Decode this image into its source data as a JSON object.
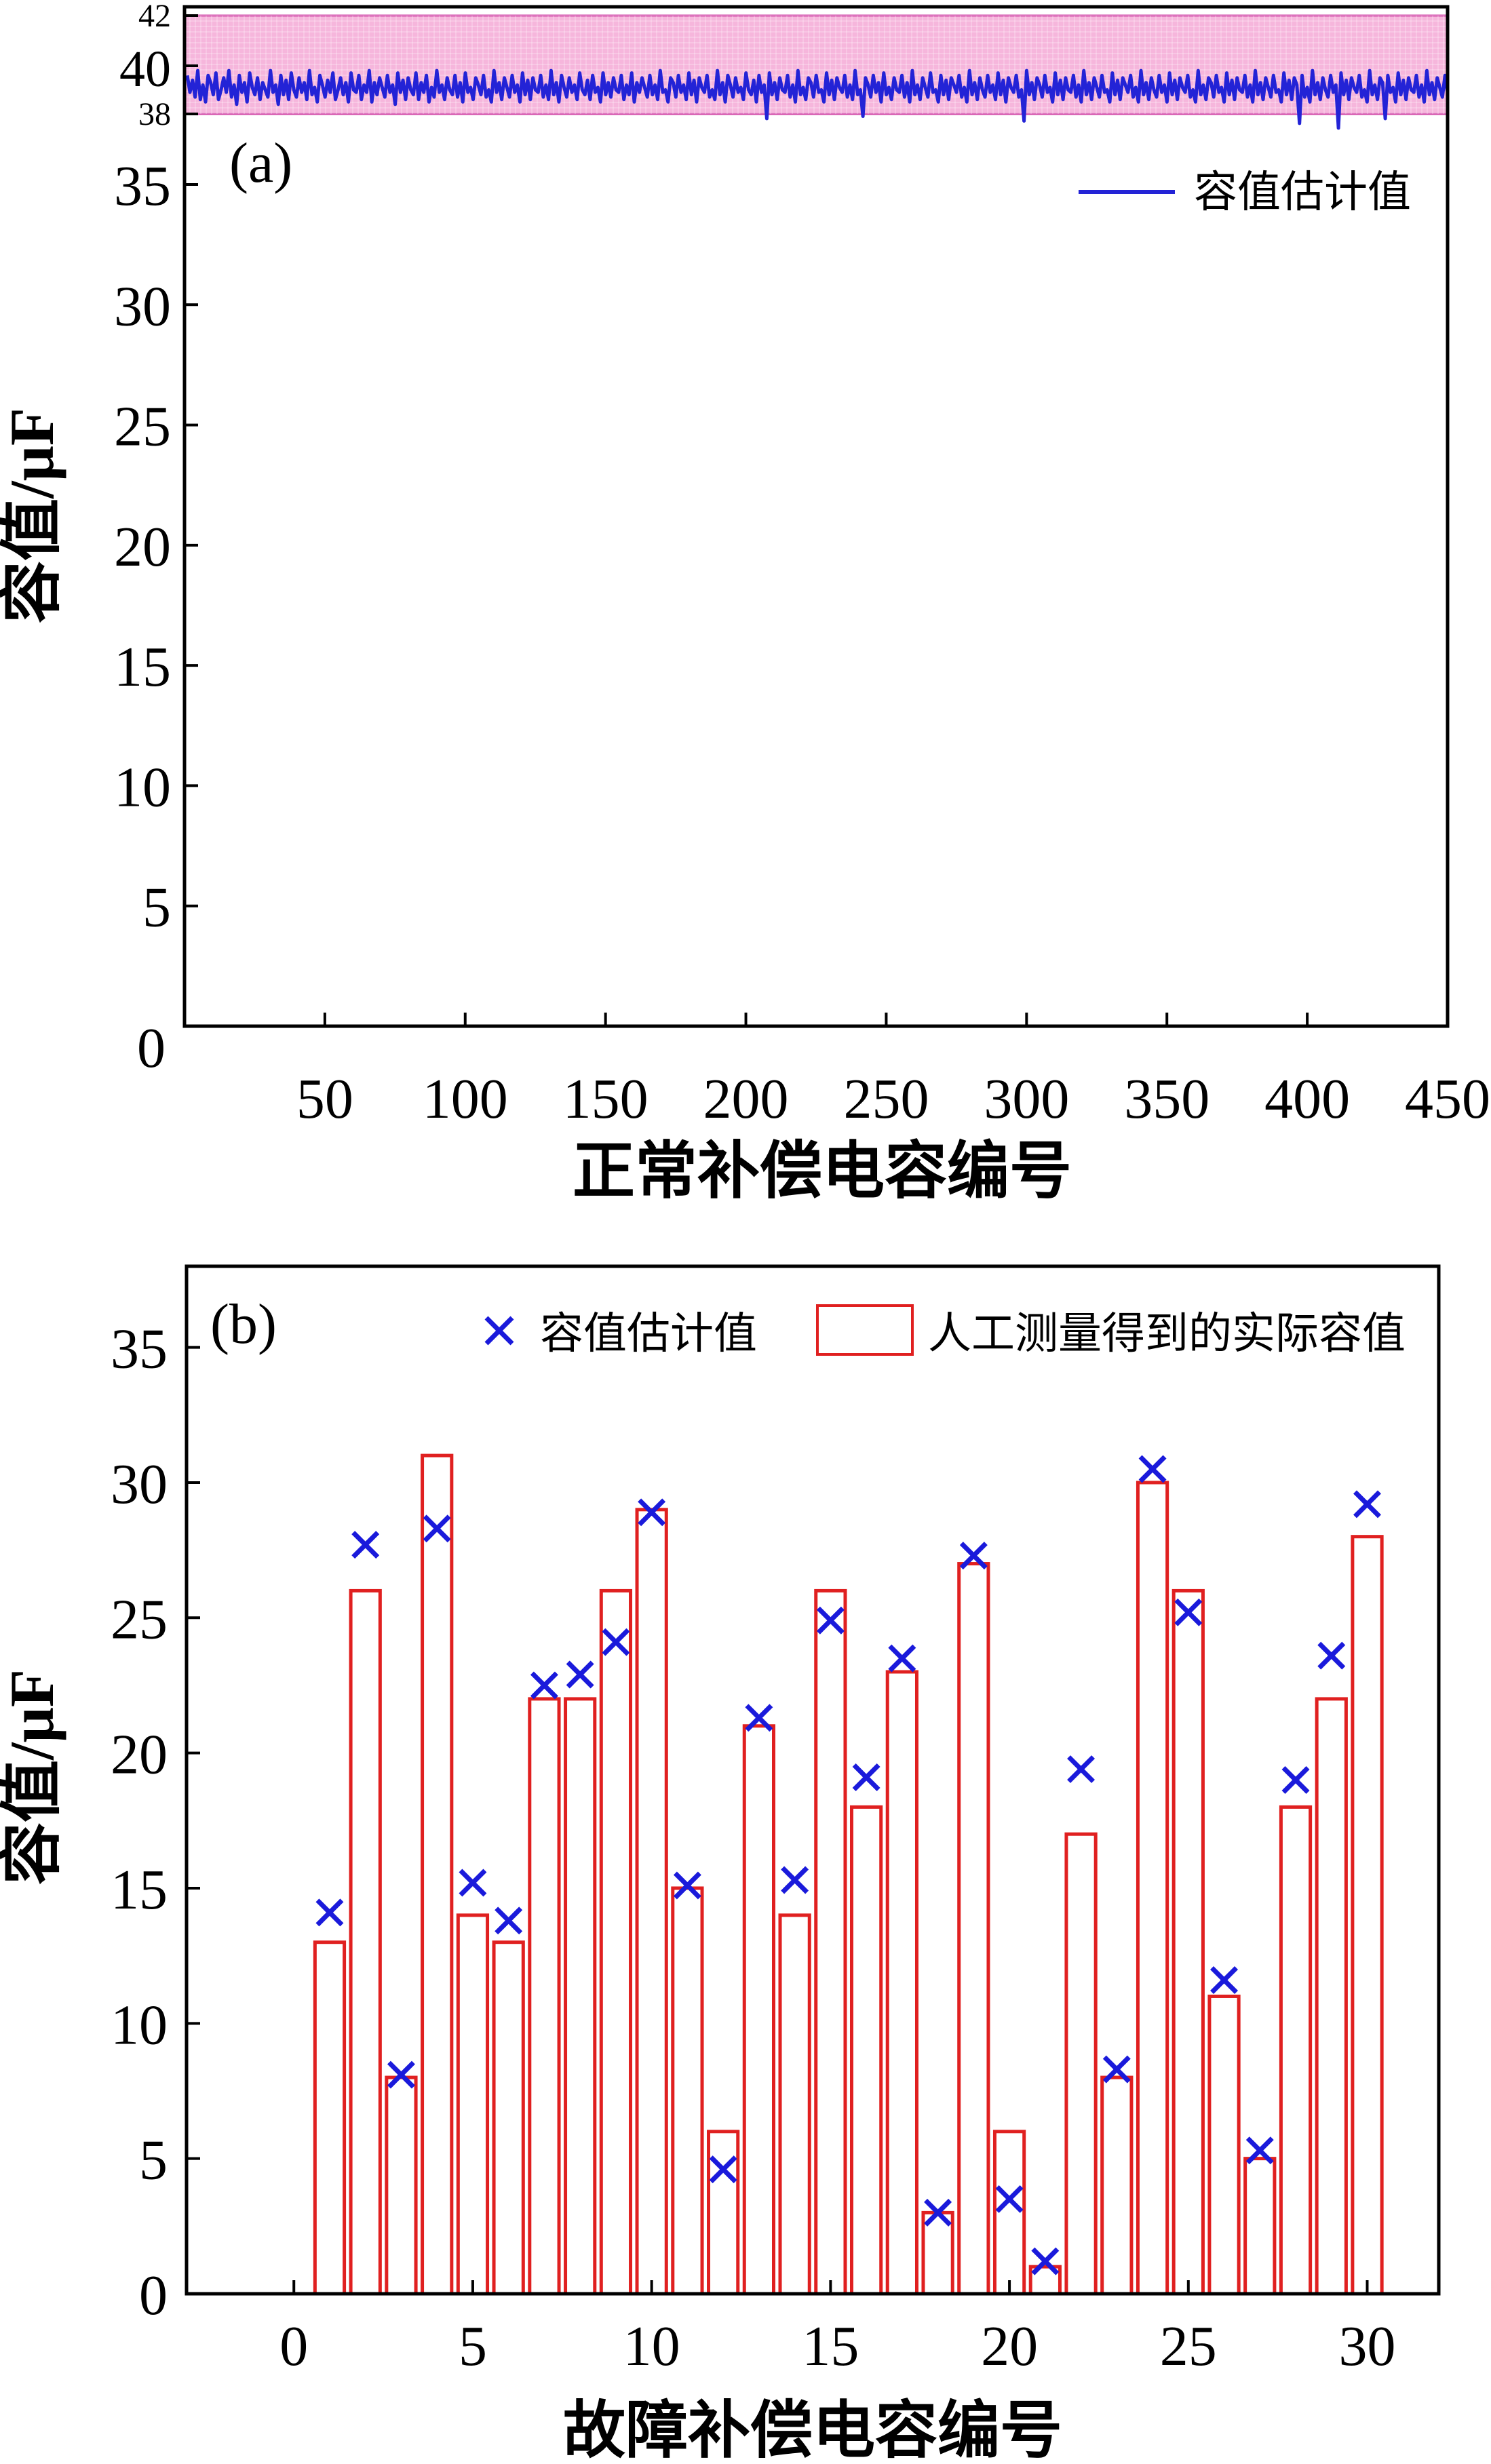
{
  "chart_data": [
    {
      "panel_label": "(a)",
      "type": "line",
      "xlabel": "正常补偿电容编号",
      "ylabel": "容值/μF",
      "xlim": [
        0,
        450
      ],
      "ylim": [
        0,
        42
      ],
      "xticks": [
        "50",
        "100",
        "150",
        "200",
        "250",
        "300",
        "350",
        "400",
        "450"
      ],
      "yticks": [
        "0",
        "5",
        "10",
        "15",
        "20",
        "25",
        "30",
        "35",
        "38",
        "40",
        "42"
      ],
      "band": {
        "range": [
          38,
          42
        ],
        "color": "#f6b6dc"
      },
      "legend_position": "top-right",
      "series": [
        {
          "name": "容值估计值",
          "color": "#2323d6",
          "values": [
            39.6,
            38.9,
            39.4,
            38.7,
            39.8,
            38.6,
            39.2,
            38.5,
            39.6,
            39.3,
            38.8,
            39.7,
            38.6,
            39.0,
            39.5,
            38.9,
            39.8,
            38.7,
            39.2,
            38.4,
            39.6,
            38.9,
            39.3,
            38.5,
            39.7,
            39.1,
            38.8,
            39.5,
            38.6,
            39.3,
            39.0,
            38.7,
            39.8,
            38.9,
            39.2,
            38.4,
            39.6,
            38.8,
            39.4,
            38.6,
            39.7,
            39.0,
            38.7,
            39.5,
            38.9,
            39.3,
            38.6,
            39.8,
            38.8,
            39.1,
            38.5,
            39.6,
            39.2,
            38.7,
            39.4,
            38.9,
            39.7,
            38.6,
            39.0,
            39.5,
            38.8,
            39.3,
            38.5,
            39.7,
            39.0,
            38.9,
            39.6,
            38.6,
            39.2,
            38.9,
            39.8,
            38.5,
            39.3,
            38.8,
            39.5,
            39.1,
            38.7,
            39.6,
            38.9,
            39.2,
            38.4,
            39.7,
            38.9,
            39.4,
            38.6,
            39.5,
            39.0,
            38.8,
            39.7,
            38.6,
            39.3,
            38.9,
            39.6,
            38.5,
            39.1,
            38.7,
            39.8,
            38.9,
            39.2,
            38.6,
            39.5,
            39.0,
            38.8,
            39.6,
            38.7,
            39.3,
            38.5,
            39.7,
            38.9,
            39.1,
            38.6,
            39.5,
            39.2,
            38.8,
            39.6,
            38.7,
            39.0,
            38.5,
            39.8,
            38.9,
            39.3,
            38.6,
            39.5,
            39.1,
            38.7,
            39.6,
            38.9,
            39.2,
            38.5,
            39.7,
            38.8,
            39.4,
            38.6,
            39.5,
            39.0,
            38.9,
            39.6,
            38.7,
            39.2,
            38.6,
            39.8,
            38.8,
            39.3,
            38.5,
            39.6,
            39.1,
            38.7,
            39.5,
            38.9,
            39.2,
            38.6,
            39.7,
            39.0,
            38.8,
            39.4,
            38.6,
            39.6,
            38.9,
            39.1,
            38.5,
            39.7,
            38.8,
            39.3,
            38.7,
            39.5,
            39.0,
            38.9,
            39.6,
            38.6,
            39.2,
            38.8,
            39.7,
            38.5,
            39.3,
            38.9,
            39.5,
            39.1,
            38.7,
            39.6,
            38.8,
            39.2,
            38.6,
            39.8,
            38.9,
            39.0,
            38.5,
            39.5,
            39.3,
            38.7,
            39.6,
            38.9,
            39.2,
            38.6,
            39.7,
            38.8,
            39.4,
            38.5,
            39.5,
            39.1,
            38.9,
            39.6,
            38.7,
            39.0,
            38.6,
            39.8,
            38.8,
            39.3,
            38.5,
            39.6,
            39.2,
            38.7,
            39.5,
            38.9,
            39.1,
            38.6,
            39.7,
            39.0,
            38.8,
            39.4,
            38.5,
            39.6,
            38.9,
            39.2,
            37.8,
            39.7,
            38.8,
            39.3,
            38.6,
            39.5,
            39.0,
            38.9,
            39.6,
            38.7,
            39.2,
            38.5,
            39.8,
            38.8,
            39.1,
            38.6,
            39.5,
            39.3,
            38.7,
            39.6,
            38.9,
            39.0,
            38.5,
            39.7,
            38.8,
            39.4,
            38.6,
            39.5,
            39.1,
            38.9,
            39.6,
            38.7,
            39.2,
            38.6,
            39.8,
            38.8,
            39.0,
            37.9,
            39.5,
            39.2,
            38.7,
            39.6,
            38.9,
            39.3,
            38.5,
            39.7,
            38.8,
            39.1,
            38.6,
            39.5,
            39.0,
            38.9,
            39.6,
            38.7,
            39.3,
            38.5,
            39.8,
            38.8,
            39.2,
            38.6,
            39.5,
            39.1,
            38.7,
            39.7,
            38.9,
            39.0,
            38.5,
            39.6,
            38.8,
            39.4,
            38.6,
            39.5,
            39.2,
            38.9,
            39.6,
            38.7,
            39.1,
            38.5,
            39.8,
            38.8,
            39.3,
            38.6,
            39.5,
            39.0,
            38.7,
            39.6,
            38.9,
            39.2,
            38.6,
            39.7,
            38.8,
            39.4,
            38.5,
            39.5,
            39.1,
            38.9,
            39.6,
            38.7,
            39.0,
            37.7,
            39.8,
            38.8,
            39.3,
            38.6,
            39.5,
            39.2,
            38.7,
            39.6,
            38.9,
            39.1,
            38.5,
            39.7,
            38.8,
            39.4,
            38.6,
            39.5,
            39.0,
            38.9,
            39.6,
            38.7,
            39.2,
            38.5,
            39.8,
            38.8,
            39.3,
            38.6,
            39.5,
            39.1,
            38.7,
            39.6,
            38.9,
            39.0,
            38.5,
            39.7,
            38.8,
            39.4,
            38.6,
            39.5,
            39.2,
            38.9,
            39.6,
            38.7,
            39.1,
            38.5,
            39.8,
            38.8,
            39.3,
            38.6,
            39.5,
            39.0,
            38.7,
            39.6,
            38.9,
            39.2,
            38.5,
            39.7,
            38.8,
            39.4,
            38.6,
            39.5,
            39.1,
            38.9,
            39.6,
            38.7,
            39.0,
            38.5,
            39.8,
            38.8,
            39.2,
            38.6,
            39.5,
            39.3,
            38.7,
            39.6,
            38.9,
            39.1,
            38.5,
            39.7,
            38.8,
            39.4,
            38.6,
            39.5,
            39.0,
            38.9,
            39.6,
            38.7,
            39.2,
            38.5,
            39.8,
            38.8,
            39.3,
            38.6,
            39.5,
            39.1,
            38.7,
            39.6,
            38.9,
            39.0,
            38.5,
            39.7,
            38.8,
            39.4,
            38.6,
            39.5,
            39.2,
            37.6,
            39.6,
            38.7,
            39.1,
            38.5,
            39.8,
            38.8,
            39.3,
            38.6,
            39.5,
            39.0,
            38.7,
            39.6,
            38.9,
            39.2,
            37.4,
            39.7,
            38.8,
            39.4,
            38.6,
            39.5,
            39.1,
            38.9,
            39.6,
            38.7,
            39.0,
            38.5,
            39.8,
            38.8,
            39.2,
            38.6,
            39.5,
            39.3,
            37.8,
            39.6,
            38.9,
            39.1,
            38.5,
            39.7,
            38.8,
            39.4,
            38.6,
            39.5,
            39.0,
            38.9,
            39.6,
            38.7,
            39.2,
            38.5,
            39.8,
            38.8,
            39.3,
            38.6,
            39.5,
            39.1,
            38.7,
            39.6,
            38.9
          ]
        }
      ]
    },
    {
      "panel_label": "(b)",
      "type": "bar",
      "xlabel": "故障补偿电容编号",
      "ylabel": "容值/μF",
      "xlim": [
        -3,
        32
      ],
      "ylim": [
        0,
        38
      ],
      "xticks": [
        "0",
        "5",
        "10",
        "15",
        "20",
        "25",
        "30"
      ],
      "yticks": [
        "0",
        "5",
        "10",
        "15",
        "20",
        "25",
        "30",
        "35"
      ],
      "legend_position": "top",
      "categories": [
        1,
        2,
        3,
        4,
        5,
        6,
        7,
        8,
        9,
        10,
        11,
        12,
        13,
        14,
        15,
        16,
        17,
        18,
        19,
        20,
        21,
        22,
        23,
        24,
        25,
        26,
        27,
        28,
        29,
        30
      ],
      "series": [
        {
          "name": "人工测量得到的实际容值",
          "kind": "bar-outline",
          "color": "#e02020",
          "values": [
            13,
            26,
            8,
            31,
            14,
            13,
            22,
            22,
            26,
            29,
            15,
            6,
            21,
            14,
            26,
            18,
            23,
            3,
            27,
            6,
            1,
            17,
            8,
            30,
            26,
            11,
            5,
            18,
            22,
            28
          ]
        },
        {
          "name": "容值估计值",
          "kind": "marker-x",
          "color": "#1a1adb",
          "values": [
            14.1,
            27.7,
            8.1,
            28.3,
            15.2,
            13.8,
            22.5,
            22.9,
            24.1,
            28.9,
            15.1,
            4.6,
            21.3,
            15.3,
            24.9,
            19.1,
            23.5,
            3.0,
            27.3,
            3.5,
            1.2,
            19.4,
            8.3,
            30.5,
            25.2,
            11.6,
            5.3,
            19.0,
            23.6,
            29.2
          ]
        }
      ]
    }
  ]
}
